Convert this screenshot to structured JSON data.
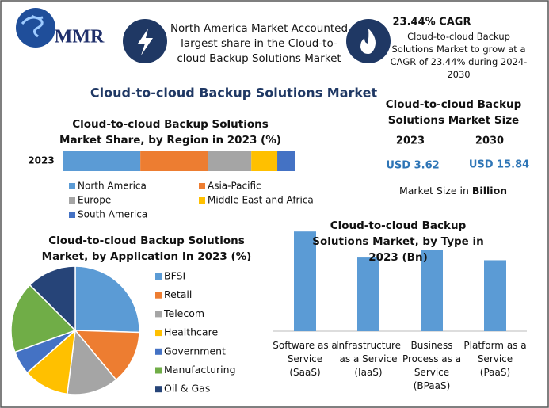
{
  "header": {
    "logo": "MMR",
    "note": "North America Market Accounted largest share in the Cloud-to-cloud Backup Solutions Market",
    "cagr_title": "23.44% CAGR",
    "cagr_text": "Cloud-to-cloud Backup Solutions Market to grow at a CAGR of 23.44% during 2024-2030"
  },
  "title": "Cloud-to-cloud Backup Solutions Market",
  "market_size": {
    "title": "Cloud-to-cloud Backup Solutions Market Size",
    "years": [
      "2023",
      "2030"
    ],
    "values": [
      "USD 3.62",
      "USD 15.84"
    ],
    "note": "Market Size in",
    "note_unit": "Billion"
  },
  "chart_data": [
    {
      "type": "stacked-bar",
      "title": "Cloud-to-cloud Backup Solutions Market Share, by Region in 2023 (%)",
      "categories": [
        "2023"
      ],
      "xlim": [
        0,
        100
      ],
      "series": [
        {
          "name": "North America",
          "color": "#5b9bd5",
          "values": [
            33.5
          ]
        },
        {
          "name": "Asia-Pacific",
          "color": "#ed7d31",
          "values": [
            29
          ]
        },
        {
          "name": "Europe",
          "color": "#a5a5a5",
          "values": [
            18.8
          ]
        },
        {
          "name": "Middle East and Africa",
          "color": "#ffc000",
          "values": [
            11.2
          ]
        },
        {
          "name": "South America",
          "color": "#4472c4",
          "values": [
            7.5
          ]
        }
      ]
    },
    {
      "type": "pie",
      "title": "Cloud-to-cloud Backup Solutions Market, by Application In 2023 (%)",
      "categories": [
        "BFSI",
        "Retail",
        "Telecom",
        "Healthcare",
        "Government",
        "Manufacturing",
        "Oil & Gas"
      ],
      "values": [
        25.5,
        13.5,
        13,
        11.5,
        6,
        18,
        12.5
      ],
      "colors": [
        "#5b9bd5",
        "#ed7d31",
        "#a5a5a5",
        "#ffc000",
        "#4472c4",
        "#70ad47",
        "#264478"
      ]
    },
    {
      "type": "bar",
      "title": "Cloud-to-cloud Backup Solutions Market, by Type in 2023 (Bn)",
      "categories": [
        "Software as a Service (SaaS)",
        "Infrastructure as a Service (IaaS)",
        "Business Process as a Service (BPaaS)",
        "Platform as a Service (PaaS)"
      ],
      "values": [
        1.11,
        0.82,
        0.9,
        0.79
      ],
      "color": "#5b9bd5",
      "ylim": [
        0,
        1.2
      ]
    }
  ]
}
